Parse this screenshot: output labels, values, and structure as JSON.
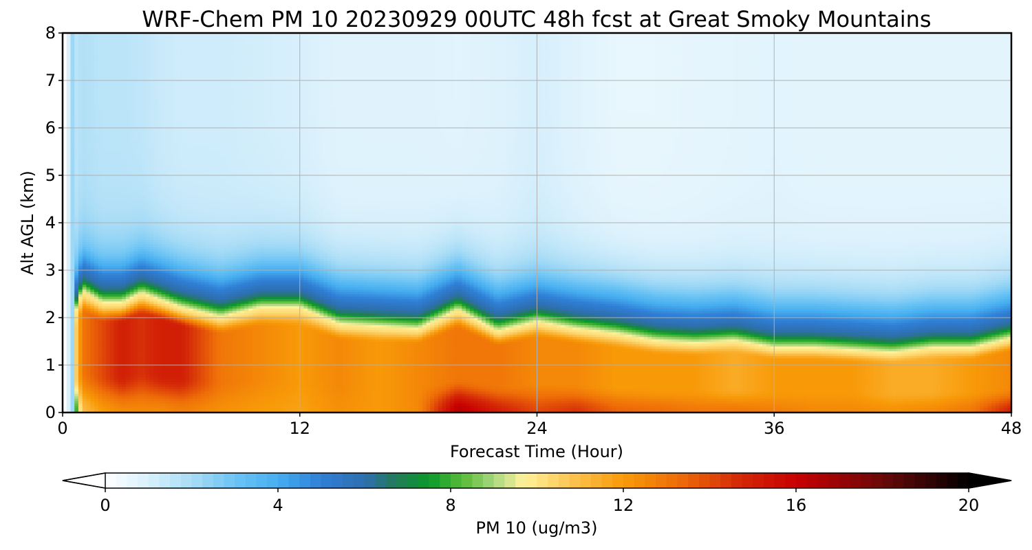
{
  "chart_data": {
    "type": "heatmap",
    "title": "WRF-Chem PM 10  20230929 00UTC 48h fcst at Great Smoky Mountains",
    "xlabel": "Forecast Time (Hour)",
    "ylabel": "Alt AGL (km)",
    "xlim": [
      0,
      48
    ],
    "ylim": [
      0,
      8
    ],
    "x_ticks": [
      "0",
      "12",
      "24",
      "36",
      "48"
    ],
    "y_ticks": [
      "0",
      "1",
      "2",
      "3",
      "4",
      "5",
      "6",
      "7",
      "8"
    ],
    "grid": true,
    "colorbar": {
      "label": "PM 10  (ug/m3)",
      "ticks": [
        "0",
        "4",
        "8",
        "12",
        "16",
        "20"
      ],
      "range": [
        0,
        20
      ],
      "extend": "both",
      "stops": [
        {
          "v": 0,
          "c": "#ffffff"
        },
        {
          "v": 1,
          "c": "#d8f0fc"
        },
        {
          "v": 2,
          "c": "#a8dcf6"
        },
        {
          "v": 3,
          "c": "#6cc4f4"
        },
        {
          "v": 4,
          "c": "#46aef0"
        },
        {
          "v": 5,
          "c": "#2f7fd6"
        },
        {
          "v": 6,
          "c": "#2e6fb0"
        },
        {
          "v": 6.7,
          "c": "#227a5a"
        },
        {
          "v": 7.5,
          "c": "#0a9a2a"
        },
        {
          "v": 8.3,
          "c": "#5cbc3a"
        },
        {
          "v": 9,
          "c": "#a8d880"
        },
        {
          "v": 9.7,
          "c": "#fff29a"
        },
        {
          "v": 10.8,
          "c": "#fcc452"
        },
        {
          "v": 12,
          "c": "#f89a08"
        },
        {
          "v": 13.3,
          "c": "#ee6c08"
        },
        {
          "v": 14.7,
          "c": "#d42808"
        },
        {
          "v": 16,
          "c": "#c80000"
        },
        {
          "v": 18,
          "c": "#6a0808"
        },
        {
          "v": 20,
          "c": "#000000"
        }
      ]
    },
    "profile_hours": [
      0,
      0.5,
      1,
      2,
      3,
      4,
      5,
      6,
      8,
      10,
      12,
      14,
      16,
      18,
      20,
      22,
      24,
      26,
      28,
      30,
      32,
      34,
      36,
      38,
      40,
      42,
      44,
      46,
      48
    ],
    "mixing_top_km": [
      0,
      1.9,
      2.55,
      2.3,
      2.3,
      2.5,
      2.35,
      2.2,
      2.0,
      2.2,
      2.2,
      1.85,
      1.8,
      1.75,
      2.15,
      1.7,
      1.9,
      1.75,
      1.65,
      1.5,
      1.45,
      1.5,
      1.35,
      1.35,
      1.3,
      1.25,
      1.35,
      1.35,
      1.55
    ],
    "surface_pm10": [
      0,
      6,
      11,
      12,
      12.5,
      12.5,
      12.5,
      12.8,
      12.3,
      12,
      11.8,
      12.3,
      12,
      12.5,
      16.5,
      15,
      14,
      14.5,
      13.5,
      13.3,
      13,
      13,
      12.8,
      12.5,
      12.5,
      12.3,
      12.5,
      13,
      15
    ],
    "core_pm10": [
      0,
      9,
      13,
      14,
      15,
      14.5,
      15,
      15,
      13,
      12.5,
      12,
      12.5,
      12,
      12.5,
      13,
      13,
      12.5,
      12.5,
      12,
      12,
      12,
      11.5,
      12,
      12,
      12,
      11.5,
      11.5,
      12,
      12.5
    ],
    "aloft_pm10": [
      0,
      1.5,
      1.8,
      1.6,
      1.6,
      1.5,
      1.3,
      1.2,
      1.2,
      1.1,
      1.0,
      0.8,
      0.8,
      0.8,
      0.75,
      0.85,
      1.05,
      0.8,
      0.6,
      0.6,
      0.65,
      0.7,
      0.75,
      0.7,
      0.7,
      0.7,
      0.7,
      0.7,
      0.7
    ]
  }
}
